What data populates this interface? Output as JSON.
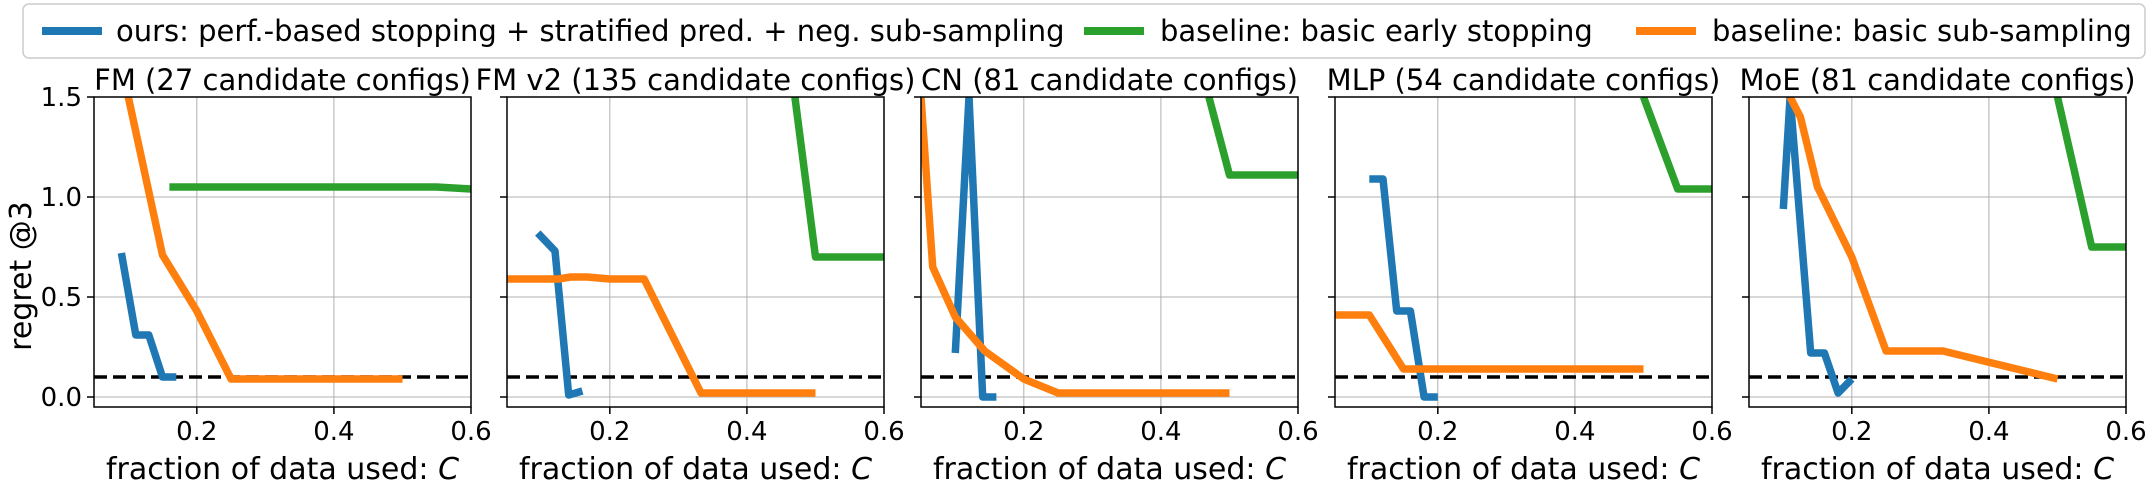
{
  "legend": [
    {
      "label": "ours: perf.-based stopping + stratified pred. + neg. sub-sampling",
      "color": "#1f77b4"
    },
    {
      "label": "baseline: basic early stopping",
      "color": "#2ca02c"
    },
    {
      "label": "baseline: basic sub-sampling",
      "color": "#ff7f0e"
    }
  ],
  "ylabel": "regret @3",
  "xlabel_prefix": "fraction of data used: ",
  "xlabel_var": "C",
  "reference_line": {
    "y": 0.1,
    "style": "dashed",
    "color": "#000000"
  },
  "chart_data": [
    {
      "type": "line",
      "title": "FM (27 candidate configs)",
      "xlim": [
        0.05,
        0.6
      ],
      "ylim": [
        -0.05,
        1.5
      ],
      "xticks": [
        0.2,
        0.4,
        0.6
      ],
      "yticks": [
        0.0,
        0.5,
        1.0,
        1.5
      ],
      "grid": true,
      "series": [
        {
          "name": "ours: perf.-based stopping + stratified pred. + neg. sub-sampling",
          "color": "#1f77b4",
          "x": [
            0.09,
            0.111,
            0.13,
            0.15,
            0.17
          ],
          "y": [
            0.72,
            0.31,
            0.31,
            0.1,
            0.1
          ]
        },
        {
          "name": "baseline: basic early stopping",
          "color": "#2ca02c",
          "x": [
            0.16,
            0.3,
            0.45,
            0.55,
            0.6
          ],
          "y": [
            1.05,
            1.05,
            1.05,
            1.05,
            1.04
          ]
        },
        {
          "name": "baseline: basic sub-sampling",
          "color": "#ff7f0e",
          "x": [
            0.1,
            0.15,
            0.2,
            0.25,
            0.333,
            0.5
          ],
          "y": [
            1.5,
            0.71,
            0.43,
            0.09,
            0.09,
            0.09
          ]
        }
      ]
    },
    {
      "type": "line",
      "title": "FM v2 (135 candidate configs)",
      "xlim": [
        0.05,
        0.6
      ],
      "ylim": [
        -0.05,
        1.5
      ],
      "xticks": [
        0.2,
        0.4,
        0.6
      ],
      "yticks": [
        0.0,
        0.5,
        1.0,
        1.5
      ],
      "grid": true,
      "series": [
        {
          "name": "ours: perf.-based stopping + stratified pred. + neg. sub-sampling",
          "color": "#1f77b4",
          "x": [
            0.095,
            0.12,
            0.14,
            0.16
          ],
          "y": [
            0.82,
            0.73,
            0.01,
            0.03
          ]
        },
        {
          "name": "baseline: basic early stopping",
          "color": "#2ca02c",
          "x": [
            0.47,
            0.5,
            0.55,
            0.6
          ],
          "y": [
            1.5,
            0.7,
            0.7,
            0.7
          ]
        },
        {
          "name": "baseline: basic sub-sampling",
          "color": "#ff7f0e",
          "x": [
            0.05,
            0.125,
            0.143,
            0.167,
            0.2,
            0.25,
            0.333,
            0.5
          ],
          "y": [
            0.59,
            0.59,
            0.6,
            0.6,
            0.59,
            0.59,
            0.02,
            0.02
          ]
        }
      ]
    },
    {
      "type": "line",
      "title": "CN (81 candidate configs)",
      "xlim": [
        0.05,
        0.6
      ],
      "ylim": [
        -0.05,
        1.5
      ],
      "xticks": [
        0.2,
        0.4,
        0.6
      ],
      "yticks": [
        0.0,
        0.5,
        1.0,
        1.5
      ],
      "grid": true,
      "series": [
        {
          "name": "ours: perf.-based stopping + stratified pred. + neg. sub-sampling",
          "color": "#1f77b4",
          "x": [
            0.1,
            0.12,
            0.14,
            0.16
          ],
          "y": [
            0.22,
            1.5,
            0.0,
            0.0
          ]
        },
        {
          "name": "baseline: basic early stopping",
          "color": "#2ca02c",
          "x": [
            0.47,
            0.5,
            0.55,
            0.6
          ],
          "y": [
            1.5,
            1.11,
            1.11,
            1.11
          ]
        },
        {
          "name": "baseline: basic sub-sampling",
          "color": "#ff7f0e",
          "x": [
            0.05,
            0.067,
            0.1,
            0.143,
            0.2,
            0.25,
            0.333,
            0.5
          ],
          "y": [
            1.5,
            0.65,
            0.4,
            0.23,
            0.09,
            0.02,
            0.02,
            0.02
          ]
        }
      ]
    },
    {
      "type": "line",
      "title": "MLP (54 candidate configs)",
      "xlim": [
        0.05,
        0.6
      ],
      "ylim": [
        -0.05,
        1.5
      ],
      "xticks": [
        0.2,
        0.4,
        0.6
      ],
      "yticks": [
        0.0,
        0.5,
        1.0,
        1.5
      ],
      "grid": true,
      "series": [
        {
          "name": "ours: perf.-based stopping + stratified pred. + neg. sub-sampling",
          "color": "#1f77b4",
          "x": [
            0.1,
            0.12,
            0.14,
            0.16,
            0.18,
            0.2
          ],
          "y": [
            1.09,
            1.09,
            0.43,
            0.43,
            0.0,
            0.0
          ]
        },
        {
          "name": "baseline: basic early stopping",
          "color": "#2ca02c",
          "x": [
            0.5,
            0.55,
            0.6
          ],
          "y": [
            1.5,
            1.04,
            1.04
          ]
        },
        {
          "name": "baseline: basic sub-sampling",
          "color": "#ff7f0e",
          "x": [
            0.05,
            0.1,
            0.15,
            0.2,
            0.25,
            0.333,
            0.5
          ],
          "y": [
            0.41,
            0.41,
            0.14,
            0.14,
            0.14,
            0.14,
            0.14
          ]
        }
      ]
    },
    {
      "type": "line",
      "title": "MoE (81 candidate configs)",
      "xlim": [
        0.05,
        0.6
      ],
      "ylim": [
        -0.05,
        1.5
      ],
      "xticks": [
        0.2,
        0.4,
        0.6
      ],
      "yticks": [
        0.0,
        0.5,
        1.0,
        1.5
      ],
      "grid": true,
      "series": [
        {
          "name": "ours: perf.-based stopping + stratified pred. + neg. sub-sampling",
          "color": "#1f77b4",
          "x": [
            0.1,
            0.11,
            0.14,
            0.16,
            0.18,
            0.2
          ],
          "y": [
            0.94,
            1.5,
            0.22,
            0.22,
            0.02,
            0.09
          ]
        },
        {
          "name": "baseline: basic early stopping",
          "color": "#2ca02c",
          "x": [
            0.5,
            0.55,
            0.6
          ],
          "y": [
            1.5,
            0.75,
            0.75
          ]
        },
        {
          "name": "baseline: basic sub-sampling",
          "color": "#ff7f0e",
          "x": [
            0.11,
            0.125,
            0.15,
            0.2,
            0.25,
            0.333,
            0.5
          ],
          "y": [
            1.5,
            1.4,
            1.05,
            0.7,
            0.23,
            0.23,
            0.09
          ]
        }
      ]
    }
  ]
}
